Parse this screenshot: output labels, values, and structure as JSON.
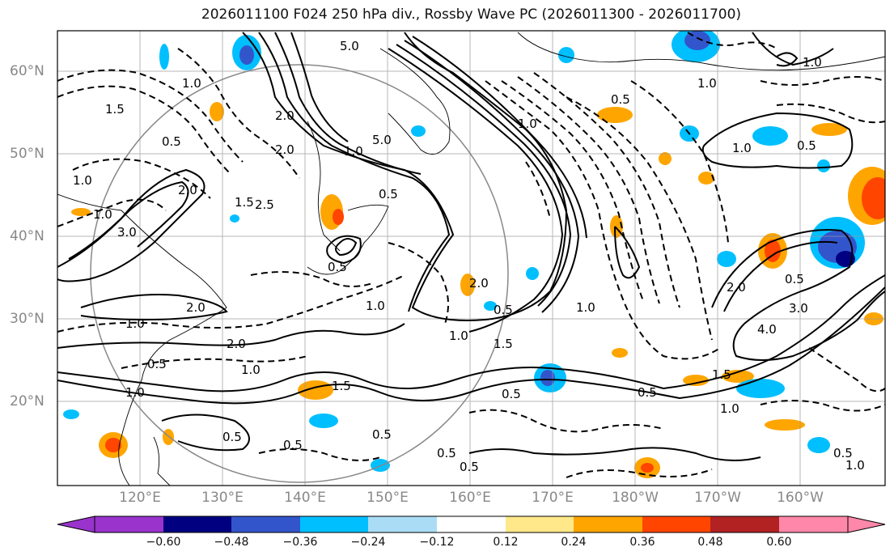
{
  "title": "2026011100 F024 250 hPa div., Rossby Wave PC (2026011300 - 2026011700)",
  "lat_labels": [
    "60°N",
    "50°N",
    "40°N",
    "30°N",
    "20°N"
  ],
  "lon_labels": [
    "120°E",
    "130°E",
    "140°E",
    "150°E",
    "160°E",
    "170°E",
    "180°W",
    "170°W",
    "160°W"
  ],
  "colorbar": {
    "ticks": [
      "−0.60",
      "−0.48",
      "−0.36",
      "−0.24",
      "−0.12",
      "0.12",
      "0.24",
      "0.36",
      "0.48",
      "0.60"
    ],
    "colors": [
      "#9933cc",
      "#000080",
      "#3355cc",
      "#00bfff",
      "#aaddf5",
      "#ffffff",
      "#ffe88a",
      "#ffa500",
      "#ff4500",
      "#b22222",
      "#ff88aa"
    ]
  },
  "contour_labels": [
    "5.0",
    "1.0",
    "1.0",
    "1.5",
    "1.0",
    "0.5",
    "1.0",
    "2.0",
    "1.0",
    "1.5",
    "2.0",
    "3.0",
    "1.0",
    "2.0",
    "5.0",
    "2.0",
    "0.5",
    "2.5",
    "0.5",
    "0.5",
    "1.0",
    "2.0",
    "1.0",
    "0.5",
    "1.5",
    "1.0",
    "2.0",
    "0.5",
    "1.0",
    "1.5",
    "0.5",
    "1.0",
    "1.0",
    "3.0",
    "4.0",
    "0.5",
    "1.0",
    "1.0",
    "0.5",
    "0.5",
    "0.5",
    "0.5",
    "0.5",
    "1.0",
    "0.5",
    "1.5",
    "2.0",
    "0.5",
    "1.0",
    "0.5"
  ]
}
